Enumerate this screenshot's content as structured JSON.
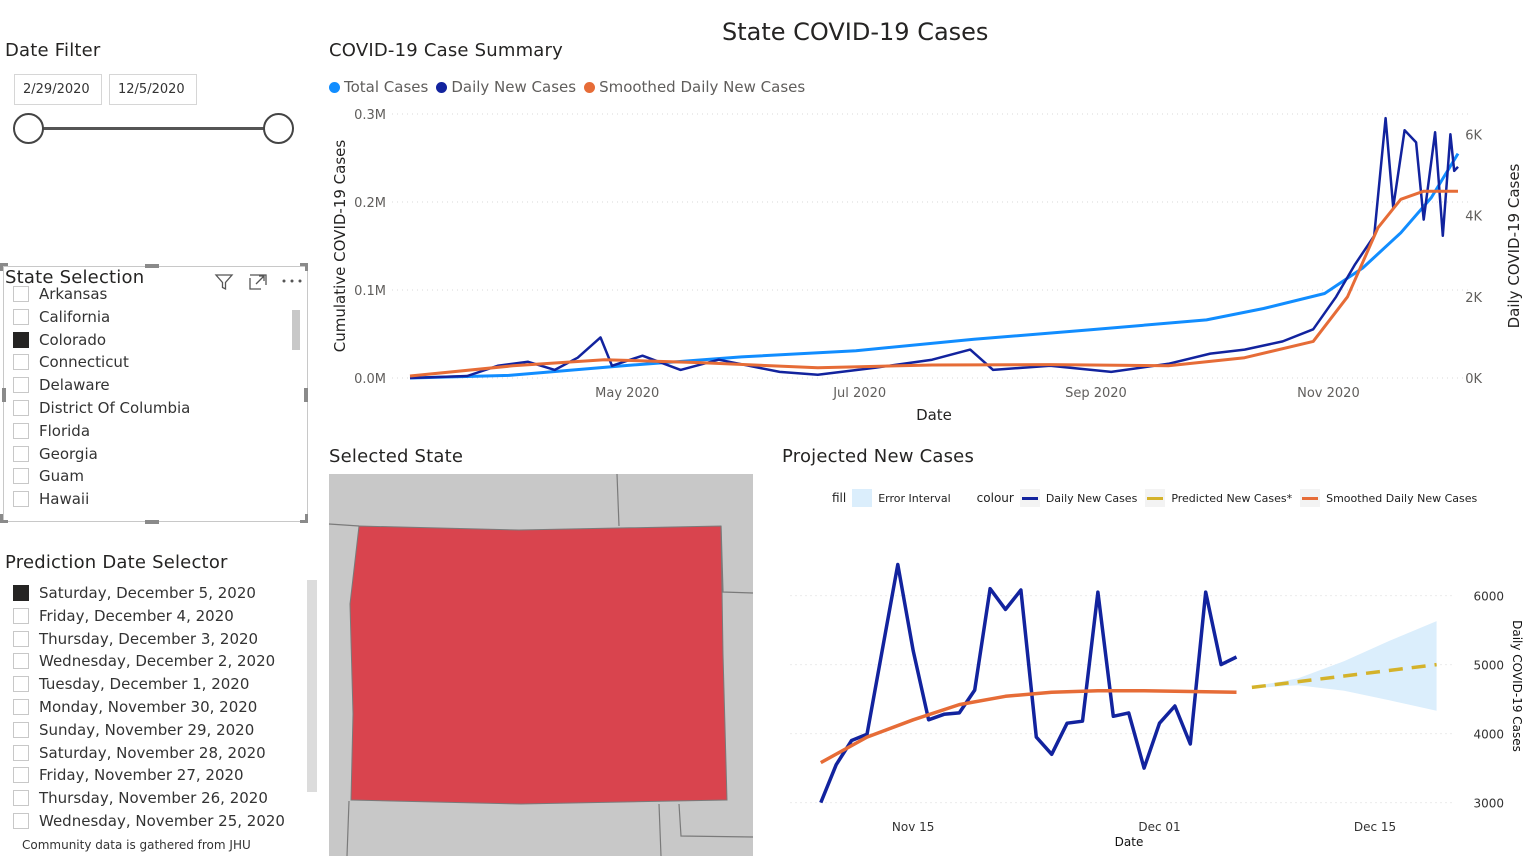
{
  "page_title": "State COVID-19 Cases",
  "date_filter": {
    "title": "Date Filter",
    "start": "2/29/2020",
    "end": "12/5/2020"
  },
  "state_selection": {
    "title": "State Selection",
    "items": [
      {
        "label": "Arkansas",
        "checked": false
      },
      {
        "label": "California",
        "checked": false
      },
      {
        "label": "Colorado",
        "checked": true
      },
      {
        "label": "Connecticut",
        "checked": false
      },
      {
        "label": "Delaware",
        "checked": false
      },
      {
        "label": "District Of Columbia",
        "checked": false
      },
      {
        "label": "Florida",
        "checked": false
      },
      {
        "label": "Georgia",
        "checked": false
      },
      {
        "label": "Guam",
        "checked": false
      },
      {
        "label": "Hawaii",
        "checked": false
      }
    ],
    "icons": [
      "filter-icon",
      "focus-mode-icon",
      "more-options-icon"
    ]
  },
  "prediction_selector": {
    "title": "Prediction Date Selector",
    "items": [
      {
        "label": "Saturday, December 5, 2020",
        "checked": true
      },
      {
        "label": "Friday, December 4, 2020",
        "checked": false
      },
      {
        "label": "Thursday, December 3, 2020",
        "checked": false
      },
      {
        "label": "Wednesday, December 2, 2020",
        "checked": false
      },
      {
        "label": "Tuesday, December 1, 2020",
        "checked": false
      },
      {
        "label": "Monday, November 30, 2020",
        "checked": false
      },
      {
        "label": "Sunday, November 29, 2020",
        "checked": false
      },
      {
        "label": "Saturday, November 28, 2020",
        "checked": false
      },
      {
        "label": "Friday, November 27, 2020",
        "checked": false
      },
      {
        "label": "Thursday, November 26, 2020",
        "checked": false
      },
      {
        "label": "Wednesday, November 25, 2020",
        "checked": false
      }
    ]
  },
  "footer": "Community data is gathered from JHU",
  "selected_state": {
    "title": "Selected State",
    "colors": {
      "state": "#d9444e",
      "background": "#c8c8c8",
      "borders": "#7a7a7a"
    }
  },
  "colors": {
    "total_cases": "#118dff",
    "daily_new": "#12239e",
    "smoothed": "#e66c37",
    "predicted": "#d4b22a",
    "error_interval": "#dbeefc"
  },
  "chart_data": [
    {
      "type": "line",
      "title": "COVID-19 Case Summary",
      "xlabel": "Date",
      "ylabel": "Cumulative COVID-19 Cases",
      "y2label": "Daily COVID-19 Cases",
      "legend_position": "top-left",
      "x_ticks": [
        "May 2020",
        "Jul 2020",
        "Sep 2020",
        "Nov 2020"
      ],
      "y_ticks": [
        "0.0M",
        "0.1M",
        "0.2M",
        "0.3M"
      ],
      "y2_ticks": [
        "0K",
        "2K",
        "4K",
        "6K"
      ],
      "ylim": [
        0,
        300000
      ],
      "y2lim": [
        0,
        6500
      ],
      "x_range": [
        "2020-03-05",
        "2020-12-05"
      ],
      "grid": true,
      "series": [
        {
          "name": "Total Cases",
          "axis": "left",
          "points": [
            [
              "2020-03-05",
              0
            ],
            [
              "2020-03-31",
              3000
            ],
            [
              "2020-04-30",
              14000
            ],
            [
              "2020-05-31",
              24000
            ],
            [
              "2020-06-30",
              31000
            ],
            [
              "2020-07-31",
              44000
            ],
            [
              "2020-08-31",
              55000
            ],
            [
              "2020-09-30",
              66000
            ],
            [
              "2020-10-15",
              79000
            ],
            [
              "2020-10-31",
              96000
            ],
            [
              "2020-11-10",
              125000
            ],
            [
              "2020-11-20",
              165000
            ],
            [
              "2020-11-28",
              205000
            ],
            [
              "2020-12-05",
              255000
            ]
          ]
        },
        {
          "name": "Daily New Cases",
          "axis": "right",
          "points": [
            [
              "2020-03-05",
              0
            ],
            [
              "2020-03-20",
              50
            ],
            [
              "2020-03-28",
              300
            ],
            [
              "2020-04-05",
              400
            ],
            [
              "2020-04-12",
              200
            ],
            [
              "2020-04-18",
              500
            ],
            [
              "2020-04-24",
              1000
            ],
            [
              "2020-04-27",
              300
            ],
            [
              "2020-05-05",
              550
            ],
            [
              "2020-05-15",
              200
            ],
            [
              "2020-05-25",
              450
            ],
            [
              "2020-06-10",
              150
            ],
            [
              "2020-06-20",
              80
            ],
            [
              "2020-07-05",
              250
            ],
            [
              "2020-07-20",
              450
            ],
            [
              "2020-07-30",
              700
            ],
            [
              "2020-08-05",
              200
            ],
            [
              "2020-08-20",
              300
            ],
            [
              "2020-09-05",
              150
            ],
            [
              "2020-09-20",
              350
            ],
            [
              "2020-10-01",
              600
            ],
            [
              "2020-10-10",
              700
            ],
            [
              "2020-10-20",
              900
            ],
            [
              "2020-10-28",
              1200
            ],
            [
              "2020-11-03",
              2000
            ],
            [
              "2020-11-08",
              2800
            ],
            [
              "2020-11-13",
              3500
            ],
            [
              "2020-11-16",
              6400
            ],
            [
              "2020-11-18",
              4200
            ],
            [
              "2020-11-21",
              6100
            ],
            [
              "2020-11-24",
              5800
            ],
            [
              "2020-11-26",
              3900
            ],
            [
              "2020-11-29",
              6050
            ],
            [
              "2020-12-01",
              3500
            ],
            [
              "2020-12-03",
              6000
            ],
            [
              "2020-12-04",
              5100
            ],
            [
              "2020-12-05",
              5200
            ]
          ]
        },
        {
          "name": "Smoothed Daily New Cases",
          "axis": "right",
          "points": [
            [
              "2020-03-05",
              50
            ],
            [
              "2020-04-01",
              300
            ],
            [
              "2020-04-25",
              450
            ],
            [
              "2020-05-20",
              380
            ],
            [
              "2020-06-20",
              250
            ],
            [
              "2020-07-20",
              320
            ],
            [
              "2020-08-20",
              330
            ],
            [
              "2020-09-20",
              300
            ],
            [
              "2020-10-10",
              500
            ],
            [
              "2020-10-28",
              900
            ],
            [
              "2020-11-06",
              2000
            ],
            [
              "2020-11-14",
              3700
            ],
            [
              "2020-11-20",
              4400
            ],
            [
              "2020-11-26",
              4600
            ],
            [
              "2020-12-05",
              4600
            ]
          ]
        }
      ]
    },
    {
      "type": "line",
      "title": "Projected New Cases",
      "xlabel": "Date",
      "ylabel": "Daily COVID-19 Cases",
      "x_ticks": [
        "Nov 15",
        "Dec 01",
        "Dec 15"
      ],
      "y_ticks": [
        3000,
        4000,
        5000,
        6000
      ],
      "ylim": [
        2980,
        6950
      ],
      "x_range": [
        "2020-11-07",
        "2020-12-20"
      ],
      "legend": {
        "fill_label": "fill",
        "colour_label": "colour",
        "fill_items": [
          "Error Interval"
        ],
        "colour_items": [
          "Daily New Cases",
          "Predicted New Cases*",
          "Smoothed Daily New Cases"
        ]
      },
      "series": [
        {
          "name": "Daily New Cases",
          "points": [
            [
              "2020-11-09",
              3000
            ],
            [
              "2020-11-10",
              3550
            ],
            [
              "2020-11-11",
              3900
            ],
            [
              "2020-11-12",
              3990
            ],
            [
              "2020-11-14",
              6450
            ],
            [
              "2020-11-15",
              5200
            ],
            [
              "2020-11-16",
              4200
            ],
            [
              "2020-11-17",
              4280
            ],
            [
              "2020-11-18",
              4300
            ],
            [
              "2020-11-19",
              4630
            ],
            [
              "2020-11-20",
              6100
            ],
            [
              "2020-11-21",
              5800
            ],
            [
              "2020-11-22",
              6080
            ],
            [
              "2020-11-23",
              3950
            ],
            [
              "2020-11-24",
              3700
            ],
            [
              "2020-11-25",
              4150
            ],
            [
              "2020-11-26",
              4180
            ],
            [
              "2020-11-27",
              6050
            ],
            [
              "2020-11-28",
              4250
            ],
            [
              "2020-11-29",
              4300
            ],
            [
              "2020-11-30",
              3500
            ],
            [
              "2020-12-01",
              4150
            ],
            [
              "2020-12-02",
              4400
            ],
            [
              "2020-12-03",
              3850
            ],
            [
              "2020-12-04",
              6050
            ],
            [
              "2020-12-05",
              5000
            ],
            [
              "2020-12-06",
              5110
            ]
          ]
        },
        {
          "name": "Smoothed Daily New Cases",
          "points": [
            [
              "2020-11-09",
              3580
            ],
            [
              "2020-11-12",
              3950
            ],
            [
              "2020-11-15",
              4200
            ],
            [
              "2020-11-18",
              4420
            ],
            [
              "2020-11-21",
              4540
            ],
            [
              "2020-11-24",
              4600
            ],
            [
              "2020-11-27",
              4620
            ],
            [
              "2020-11-30",
              4620
            ],
            [
              "2020-12-03",
              4610
            ],
            [
              "2020-12-06",
              4600
            ]
          ]
        },
        {
          "name": "Predicted New Cases*",
          "points": [
            [
              "2020-12-07",
              4670
            ],
            [
              "2020-12-19",
              5000
            ]
          ]
        },
        {
          "name": "Error Interval",
          "upper": [
            [
              "2020-12-07",
              4680
            ],
            [
              "2020-12-10",
              4800
            ],
            [
              "2020-12-13",
              5050
            ],
            [
              "2020-12-16",
              5350
            ],
            [
              "2020-12-19",
              5630
            ]
          ],
          "lower": [
            [
              "2020-12-07",
              4660
            ],
            [
              "2020-12-10",
              4700
            ],
            [
              "2020-12-13",
              4620
            ],
            [
              "2020-12-16",
              4480
            ],
            [
              "2020-12-19",
              4330
            ]
          ]
        }
      ]
    }
  ]
}
